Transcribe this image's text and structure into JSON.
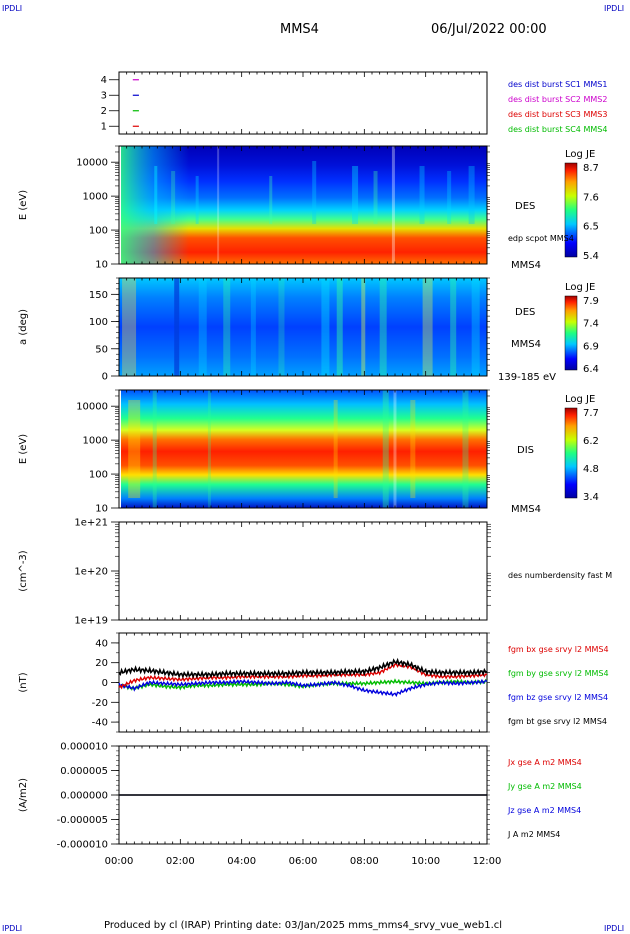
{
  "header": {
    "corner_labels": [
      "IPDLI",
      "IPDLI",
      "IPDLI",
      "IPDLI"
    ],
    "spacecraft": "MMS4",
    "date": "06/Jul/2022 00:00"
  },
  "footer": {
    "text": "Produced by cl (IRAP)   Printing date: 03/Jan/2025   mms_mms4_srvy_vue_web1.cl"
  },
  "time_axis": {
    "ticks": [
      "00:00",
      "02:00",
      "04:00",
      "06:00",
      "08:00",
      "10:00",
      "12:00"
    ],
    "range_hours": [
      0,
      12
    ]
  },
  "colors": {
    "mms1": "#0000cc",
    "mms2": "#cc00cc",
    "mms3": "#dd0000",
    "mms4": "#00bb00",
    "bx": "#dd0000",
    "by": "#00bb00",
    "bz": "#0000dd",
    "bt": "#000000"
  },
  "chart_data": [
    {
      "type": "scatter",
      "panel": "burst-availability",
      "yticks": [
        "1",
        "2",
        "3",
        "4"
      ],
      "ylim": [
        0.5,
        4.5
      ],
      "series": [
        {
          "name": "des dist burst SC1 MMS1",
          "x_hours": [
            0.45,
            0.65
          ],
          "y": 1
        },
        {
          "name": "des dist burst SC2 MMS2",
          "x_hours": [
            0.45,
            0.65
          ],
          "y": 2
        },
        {
          "name": "des dist burst SC3 MMS3",
          "x_hours": [
            0.45,
            0.65
          ],
          "y": 3
        },
        {
          "name": "des dist burst SC4 MMS4",
          "x_hours": [
            0.45,
            0.65
          ],
          "y": 4
        }
      ],
      "legend": [
        "des dist burst SC1 MMS1",
        "des dist burst SC2 MMS2",
        "des dist burst SC3 MMS3",
        "des dist burst SC4 MMS4"
      ]
    },
    {
      "type": "heatmap",
      "panel": "des-energy",
      "ylabel": "E (eV)",
      "yscale": "log",
      "ylim": [
        10,
        30000
      ],
      "yticks": [
        "10",
        "100",
        "1000",
        "10000"
      ],
      "instrument": "DES",
      "spacecraft": "MMS4",
      "overlay": "edp scpot MMS4",
      "colorbar": {
        "title": "Log JE",
        "range": [
          5.4,
          8.7
        ],
        "ticks": [
          "8.7",
          "7.6",
          "6.5",
          "5.4"
        ]
      }
    },
    {
      "type": "heatmap",
      "panel": "des-pitch-angle",
      "ylabel": "a (deg)",
      "ylim": [
        0,
        180
      ],
      "yticks": [
        "0",
        "50",
        "100",
        "150"
      ],
      "instrument": "DES",
      "spacecraft": "MMS4",
      "energy_range": "139-185 eV",
      "colorbar": {
        "title": "Log JE",
        "range": [
          6.4,
          7.9
        ],
        "ticks": [
          "7.9",
          "7.4",
          "6.9",
          "6.4"
        ]
      }
    },
    {
      "type": "heatmap",
      "panel": "dis-energy",
      "ylabel": "E (eV)",
      "yscale": "log",
      "ylim": [
        10,
        30000
      ],
      "yticks": [
        "10",
        "100",
        "1000",
        "10000"
      ],
      "instrument": "DIS",
      "spacecraft": "MMS4",
      "colorbar": {
        "title": "Log JE",
        "range": [
          3.4,
          7.7
        ],
        "ticks": [
          "7.7",
          "6.2",
          "4.8",
          "3.4"
        ]
      }
    },
    {
      "type": "line",
      "panel": "density",
      "ylabel": "(cm^-3)",
      "yscale": "log",
      "ylim": [
        1e+19,
        1e+21
      ],
      "yticks": [
        "1e+19",
        "1e+20",
        "1e+21"
      ],
      "legend": [
        "des numberdensity fast M"
      ],
      "values": []
    },
    {
      "type": "line",
      "panel": "magnetic-field",
      "ylabel": "(nT)",
      "ylim": [
        -50,
        50
      ],
      "yticks": [
        "-40",
        "-20",
        "0",
        "20",
        "40"
      ],
      "x_hours": [
        0,
        0.5,
        1,
        1.5,
        2,
        2.5,
        3,
        3.5,
        4,
        4.5,
        5,
        5.5,
        6,
        6.5,
        7,
        7.5,
        8,
        8.5,
        9,
        9.5,
        10,
        10.5,
        11,
        11.5,
        12
      ],
      "series": [
        {
          "name": "fgm bx gse srvy l2 MMS4",
          "values": [
            -5,
            2,
            5,
            4,
            3,
            4,
            5,
            5,
            6,
            6,
            6,
            6,
            7,
            7,
            8,
            8,
            8,
            10,
            18,
            16,
            8,
            6,
            6,
            7,
            8
          ]
        },
        {
          "name": "fgm by gse srvy l2 MMS4",
          "values": [
            -3,
            -6,
            -2,
            -4,
            -5,
            -3,
            -3,
            -2,
            -2,
            -2,
            -1,
            -2,
            -4,
            -2,
            -1,
            -1,
            -1,
            0,
            1,
            0,
            -1,
            0,
            1,
            0,
            1
          ]
        },
        {
          "name": "fgm bz gse srvy l2 MMS4",
          "values": [
            -2,
            -6,
            0,
            -1,
            -2,
            -1,
            0,
            0,
            1,
            0,
            -1,
            0,
            -3,
            -2,
            0,
            -3,
            -8,
            -10,
            -12,
            -6,
            -2,
            0,
            -1,
            0,
            1
          ]
        },
        {
          "name": "fgm bt gse srvy l2 MMS4",
          "values": [
            10,
            13,
            12,
            10,
            8,
            8,
            8,
            9,
            9,
            9,
            9,
            9,
            10,
            10,
            10,
            11,
            11,
            15,
            21,
            18,
            11,
            10,
            10,
            10,
            11
          ]
        }
      ]
    },
    {
      "type": "line",
      "panel": "current-density",
      "ylabel": "(A/m2)",
      "ylim": [
        -1e-05,
        1e-05
      ],
      "yticks": [
        "-0.000010",
        "-0.000005",
        "0.000000",
        "0.000005",
        "0.000010"
      ],
      "x_hours": [
        0,
        6,
        12
      ],
      "series": [
        {
          "name": "Jx gse A m2 MMS4",
          "values": [
            0,
            0,
            0
          ]
        },
        {
          "name": "Jy gse A m2 MMS4",
          "values": [
            0,
            0,
            0
          ]
        },
        {
          "name": "Jz gse A m2 MMS4",
          "values": [
            0,
            0,
            0
          ]
        },
        {
          "name": "J A m2 MMS4",
          "values": [
            0,
            0,
            0
          ]
        }
      ]
    }
  ]
}
